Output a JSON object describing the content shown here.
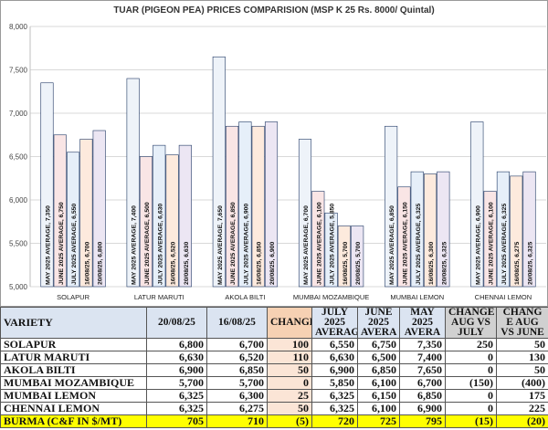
{
  "chart_data": {
    "type": "bar",
    "title": "TUAR (PIGEON PEA) PRICES COMPARISION (MSP K 25 Rs. 8000/ Quintal)",
    "categories": [
      "SOLAPUR",
      "LATUR MARUTI",
      "AKOLA BILTI",
      "MUMBAI MOZAMBIQUE",
      "MUMBAI LEMON",
      "CHENNAI LEMON"
    ],
    "ylim": [
      5000,
      8000
    ],
    "yticks": [
      "5,000",
      "5,500",
      "6,000",
      "6,500",
      "7,000",
      "7,500",
      "8,000"
    ],
    "ytick_values": [
      5000,
      5500,
      6000,
      6500,
      7000,
      7500,
      8000
    ],
    "grid": true,
    "series": [
      {
        "name": "MAY 2025 AVERAGE",
        "color": "#eef3f9",
        "values": [
          7350,
          7400,
          7650,
          6700,
          6850,
          6900
        ],
        "labels": [
          "MAY 2025 AVERAGE, 7,350",
          "MAY 2025 AVERAGE, 7,400",
          "MAY 2025 AVERAGE, 7,650",
          "MAY 2025 AVERAGE, 6,700",
          "MAY 2025 AVERAGE, 6,850",
          "MAY 2025 AVERAGE, 6,900"
        ]
      },
      {
        "name": "JUNE 2025 AVERAGE",
        "color": "#f9e5e5",
        "values": [
          6750,
          6500,
          6850,
          6100,
          6150,
          6100
        ],
        "labels": [
          "JUNE 2025 AVERAGE, 6,750",
          "JUNE 2025 AVERAGE, 6,500",
          "JUNE 2025 AVERAGE, 6,850",
          "JUNE 2025 AVERAGE, 6,100",
          "JUNE 2025 AVERAGE, 6,150",
          "JUNE 2025 AVERAGE, 6,100"
        ]
      },
      {
        "name": "JULY 2025 AVERAGE",
        "color": "#e6eff9",
        "values": [
          6550,
          6630,
          6900,
          5850,
          6325,
          6325
        ],
        "labels": [
          "JULY 2025 AVERAGE, 6,550",
          "JULY 2025 AVERAGE, 6,630",
          "JULY 2025 AVERAGE, 6,900",
          "JULY 2025 AVERAGE, 5,850",
          "JULY 2025 AVERAGE, 6,325",
          "JULY 2025 AVERAGE, 6,325"
        ]
      },
      {
        "name": "16/08/25",
        "color": "#fdeadd",
        "values": [
          6700,
          6520,
          6850,
          5700,
          6300,
          6275
        ],
        "labels": [
          "16/08/25, 6,700",
          "16/08/25, 6,520",
          "16/08/25, 6,850",
          "16/08/25, 5,700",
          "16/08/25, 6,300",
          "16/08/25, 6,275"
        ]
      },
      {
        "name": "20/08/25",
        "color": "#ece6f3",
        "values": [
          6800,
          6630,
          6900,
          5700,
          6325,
          6325
        ],
        "labels": [
          "20/08/25, 6,800",
          "20/08/25, 6,630",
          "20/08/25, 6,900",
          "20/08/25, 5,700",
          "20/08/25, 6,325",
          "20/08/25, 6,325"
        ]
      }
    ]
  },
  "table": {
    "headers": {
      "variety": "VARIETY",
      "d1": "20/08/25",
      "d2": "16/08/25",
      "change": "CHANGE",
      "july": "JULY 2025 AVERAG",
      "june": "JUNE 2025 AVERA",
      "may": "MAY 2025 AVERA",
      "chg_jul": "CHANGE AUG VS JULY",
      "chg_jun": "CHANG E AUG VS JUNE"
    },
    "rows": [
      {
        "variety": "SOLAPUR",
        "d1": "6,800",
        "d2": "6,700",
        "change": "100",
        "july": "6,550",
        "june": "6,750",
        "may": "7,350",
        "chg_jul": "250",
        "chg_jun": "50",
        "chg_sign": "pos",
        "chg_jul_sign": "pos",
        "chg_jun_sign": "pos"
      },
      {
        "variety": "LATUR MARUTI",
        "d1": "6,630",
        "d2": "6,520",
        "change": "110",
        "july": "6,630",
        "june": "6,500",
        "may": "7,400",
        "chg_jul": "0",
        "chg_jun": "130",
        "chg_sign": "pos",
        "chg_jul_sign": "pos",
        "chg_jun_sign": "pos"
      },
      {
        "variety": "AKOLA BILTI",
        "d1": "6,900",
        "d2": "6,850",
        "change": "50",
        "july": "6,900",
        "june": "6,850",
        "may": "7,650",
        "chg_jul": "0",
        "chg_jun": "50",
        "chg_sign": "pos",
        "chg_jul_sign": "pos",
        "chg_jun_sign": "pos"
      },
      {
        "variety": "MUMBAI MOZAMBIQUE",
        "d1": "5,700",
        "d2": "5,700",
        "change": "0",
        "july": "5,850",
        "june": "6,100",
        "may": "6,700",
        "chg_jul": "(150)",
        "chg_jun": "(400)",
        "chg_sign": "pos",
        "chg_jul_sign": "neg",
        "chg_jun_sign": "neg"
      },
      {
        "variety": "MUMBAI LEMON",
        "d1": "6,325",
        "d2": "6,300",
        "change": "25",
        "july": "6,325",
        "june": "6,150",
        "may": "6,850",
        "chg_jul": "0",
        "chg_jun": "175",
        "chg_sign": "pos",
        "chg_jul_sign": "pos",
        "chg_jun_sign": "pos"
      },
      {
        "variety": "CHENNAI LEMON",
        "d1": "6,325",
        "d2": "6,275",
        "change": "50",
        "july": "6,325",
        "june": "6,100",
        "may": "6,900",
        "chg_jul": "0",
        "chg_jun": "225",
        "chg_sign": "pos",
        "chg_jul_sign": "pos",
        "chg_jun_sign": "pos"
      },
      {
        "variety": "BURMA (C&F IN $/MT)",
        "d1": "705",
        "d2": "710",
        "change": "(5)",
        "july": "720",
        "june": "725",
        "may": "795",
        "chg_jul": "(15)",
        "chg_jun": "(20)",
        "chg_sign": "neg",
        "chg_jul_sign": "neg",
        "chg_jun_sign": "neg",
        "highlight": true
      }
    ]
  }
}
